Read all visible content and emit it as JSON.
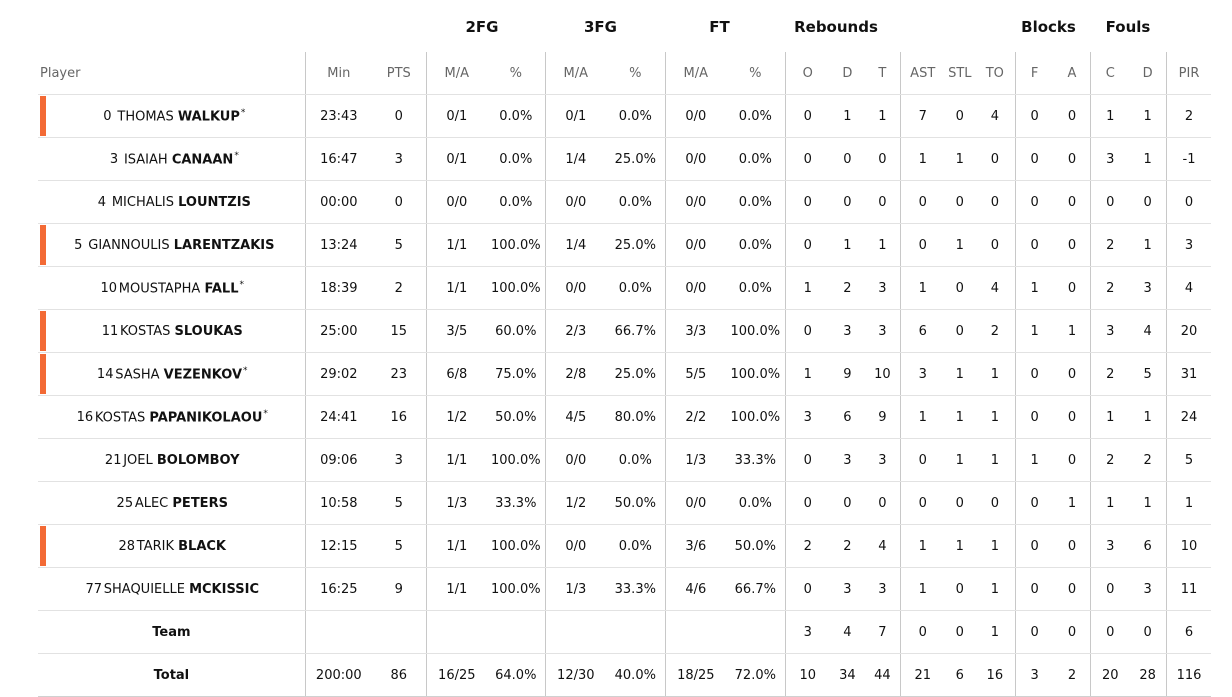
{
  "groups": {
    "fg2": "2FG",
    "fg3": "3FG",
    "ft": "FT",
    "rebounds": "Rebounds",
    "blocks": "Blocks",
    "fouls": "Fouls"
  },
  "columns": {
    "player": "Player",
    "min": "Min",
    "pts": "PTS",
    "fg2_ma": "M/A",
    "fg2_pct": "%",
    "fg3_ma": "M/A",
    "fg3_pct": "%",
    "ft_ma": "M/A",
    "ft_pct": "%",
    "reb_o": "O",
    "reb_d": "D",
    "reb_t": "T",
    "ast": "AST",
    "stl": "STL",
    "to": "TO",
    "blk_f": "F",
    "blk_a": "A",
    "foul_c": "C",
    "foul_d": "D",
    "pir": "PIR"
  },
  "accent_color": "#f36a35",
  "players": [
    {
      "num": "0",
      "first": "THOMAS",
      "last": "WALKUP",
      "star": "*",
      "starter_bar": true,
      "stats": [
        "23:43",
        "0",
        "0/1",
        "0.0%",
        "0/1",
        "0.0%",
        "0/0",
        "0.0%",
        "0",
        "1",
        "1",
        "7",
        "0",
        "4",
        "0",
        "0",
        "1",
        "1",
        "2"
      ]
    },
    {
      "num": "3",
      "first": "ISAIAH",
      "last": "CANAAN",
      "star": "*",
      "starter_bar": false,
      "stats": [
        "16:47",
        "3",
        "0/1",
        "0.0%",
        "1/4",
        "25.0%",
        "0/0",
        "0.0%",
        "0",
        "0",
        "0",
        "1",
        "1",
        "0",
        "0",
        "0",
        "3",
        "1",
        "-1"
      ]
    },
    {
      "num": "4",
      "first": "MICHALIS",
      "last": "LOUNTZIS",
      "star": "",
      "starter_bar": false,
      "stats": [
        "00:00",
        "0",
        "0/0",
        "0.0%",
        "0/0",
        "0.0%",
        "0/0",
        "0.0%",
        "0",
        "0",
        "0",
        "0",
        "0",
        "0",
        "0",
        "0",
        "0",
        "0",
        "0"
      ]
    },
    {
      "num": "5",
      "first": "GIANNOULIS",
      "last": "LARENTZAKIS",
      "star": "",
      "starter_bar": true,
      "stats": [
        "13:24",
        "5",
        "1/1",
        "100.0%",
        "1/4",
        "25.0%",
        "0/0",
        "0.0%",
        "0",
        "1",
        "1",
        "0",
        "1",
        "0",
        "0",
        "0",
        "2",
        "1",
        "3"
      ]
    },
    {
      "num": "10",
      "first": "MOUSTAPHA",
      "last": "FALL",
      "star": "*",
      "starter_bar": false,
      "stats": [
        "18:39",
        "2",
        "1/1",
        "100.0%",
        "0/0",
        "0.0%",
        "0/0",
        "0.0%",
        "1",
        "2",
        "3",
        "1",
        "0",
        "4",
        "1",
        "0",
        "2",
        "3",
        "4"
      ]
    },
    {
      "num": "11",
      "first": "KOSTAS",
      "last": "SLOUKAS",
      "star": "",
      "starter_bar": true,
      "stats": [
        "25:00",
        "15",
        "3/5",
        "60.0%",
        "2/3",
        "66.7%",
        "3/3",
        "100.0%",
        "0",
        "3",
        "3",
        "6",
        "0",
        "2",
        "1",
        "1",
        "3",
        "4",
        "20"
      ]
    },
    {
      "num": "14",
      "first": "SASHA",
      "last": "VEZENKOV",
      "star": "*",
      "starter_bar": true,
      "stats": [
        "29:02",
        "23",
        "6/8",
        "75.0%",
        "2/8",
        "25.0%",
        "5/5",
        "100.0%",
        "1",
        "9",
        "10",
        "3",
        "1",
        "1",
        "0",
        "0",
        "2",
        "5",
        "31"
      ]
    },
    {
      "num": "16",
      "first": "KOSTAS",
      "last": "PAPANIKOLAOU",
      "star": "*",
      "starter_bar": false,
      "stats": [
        "24:41",
        "16",
        "1/2",
        "50.0%",
        "4/5",
        "80.0%",
        "2/2",
        "100.0%",
        "3",
        "6",
        "9",
        "1",
        "1",
        "1",
        "0",
        "0",
        "1",
        "1",
        "24"
      ]
    },
    {
      "num": "21",
      "first": "JOEL",
      "last": "BOLOMBOY",
      "star": "",
      "starter_bar": false,
      "stats": [
        "09:06",
        "3",
        "1/1",
        "100.0%",
        "0/0",
        "0.0%",
        "1/3",
        "33.3%",
        "0",
        "3",
        "3",
        "0",
        "1",
        "1",
        "1",
        "0",
        "2",
        "2",
        "5"
      ]
    },
    {
      "num": "25",
      "first": "ALEC",
      "last": "PETERS",
      "star": "",
      "starter_bar": false,
      "stats": [
        "10:58",
        "5",
        "1/3",
        "33.3%",
        "1/2",
        "50.0%",
        "0/0",
        "0.0%",
        "0",
        "0",
        "0",
        "0",
        "0",
        "0",
        "0",
        "1",
        "1",
        "1",
        "1"
      ]
    },
    {
      "num": "28",
      "first": "TARIK",
      "last": "BLACK",
      "star": "",
      "starter_bar": true,
      "stats": [
        "12:15",
        "5",
        "1/1",
        "100.0%",
        "0/0",
        "0.0%",
        "3/6",
        "50.0%",
        "2",
        "2",
        "4",
        "1",
        "1",
        "1",
        "0",
        "0",
        "3",
        "6",
        "10"
      ]
    },
    {
      "num": "77",
      "first": "SHAQUIELLE",
      "last": "MCKISSIC",
      "star": "",
      "starter_bar": false,
      "stats": [
        "16:25",
        "9",
        "1/1",
        "100.0%",
        "1/3",
        "33.3%",
        "4/6",
        "66.7%",
        "0",
        "3",
        "3",
        "1",
        "0",
        "1",
        "0",
        "0",
        "0",
        "3",
        "11"
      ]
    }
  ],
  "team": {
    "label": "Team",
    "stats": [
      "",
      "",
      "",
      "",
      "",
      "",
      "",
      "",
      "3",
      "4",
      "7",
      "0",
      "0",
      "1",
      "0",
      "0",
      "0",
      "0",
      "6"
    ]
  },
  "total": {
    "label": "Total",
    "stats": [
      "200:00",
      "86",
      "16/25",
      "64.0%",
      "12/30",
      "40.0%",
      "18/25",
      "72.0%",
      "10",
      "34",
      "44",
      "21",
      "6",
      "16",
      "3",
      "2",
      "20",
      "28",
      "116"
    ]
  }
}
